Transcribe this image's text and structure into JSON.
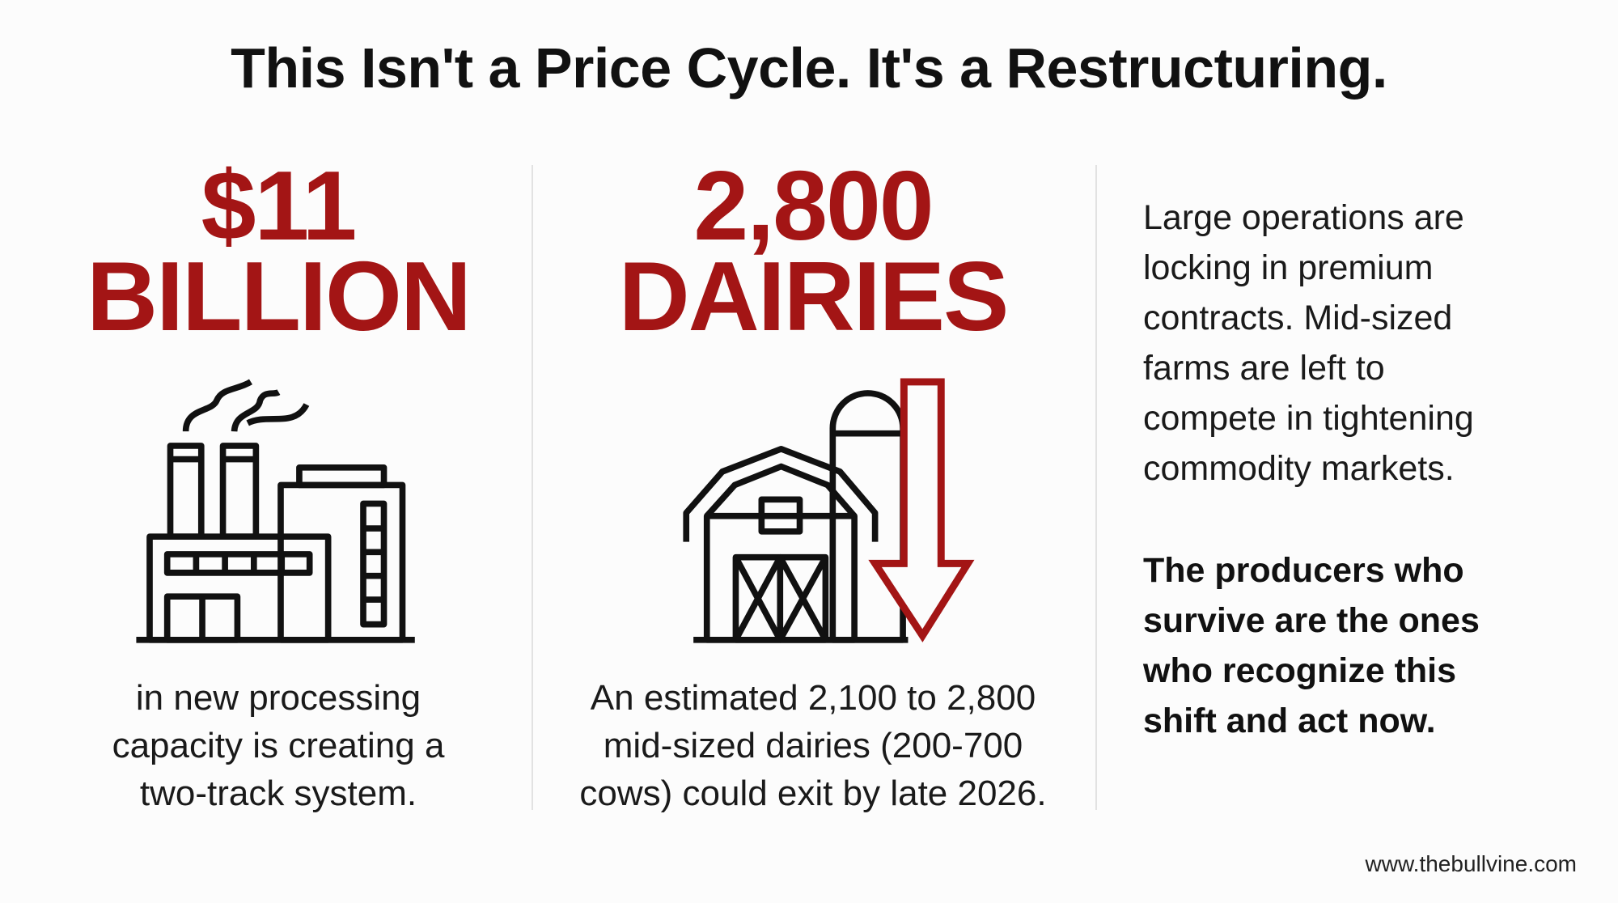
{
  "title": "This Isn't a Price Cycle. It's a Restructuring.",
  "columns": [
    {
      "stat": [
        "$11",
        "BILLION"
      ],
      "description": [
        "in new processing",
        "capacity is creating a",
        "two-track system."
      ]
    },
    {
      "stat": [
        "2,800",
        "DAIRIES"
      ],
      "description": [
        "An estimated 2,100 to 2,800",
        "mid-sized dairies (200-700",
        "cows) could exit by late 2026."
      ]
    }
  ],
  "side": {
    "paragraph": [
      "Large operations are",
      "locking in premium",
      "contracts. Mid-sized",
      "farms are left to",
      "compete in tightening",
      "commodity markets."
    ],
    "emphasis": [
      "The producers who",
      "survive are the ones",
      "who recognize this",
      "shift and act now."
    ]
  },
  "footer": "www.thebullvine.com"
}
